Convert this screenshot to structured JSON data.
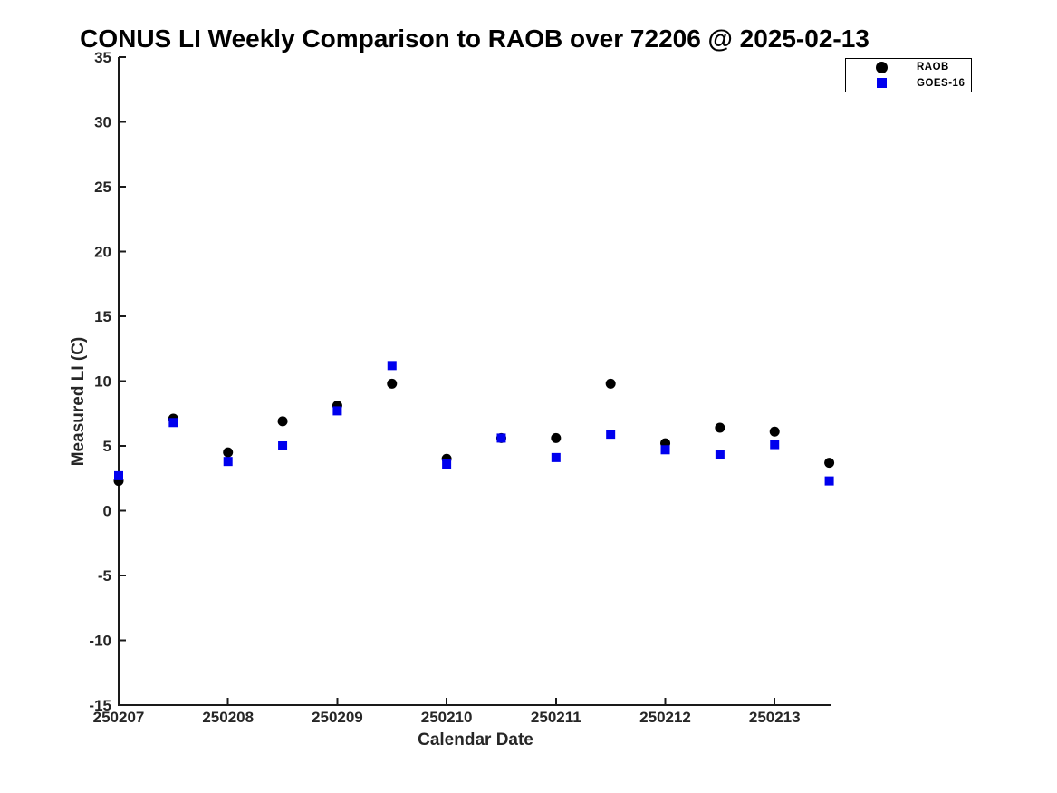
{
  "chart_data": {
    "type": "scatter",
    "title": "CONUS LI Weekly Comparison to RAOB over 72206 @ 2025-02-13",
    "xlabel": "Calendar Date",
    "ylabel": "Measured LI (C)",
    "xlim": [
      250207,
      250213.52
    ],
    "ylim": [
      -15,
      35
    ],
    "xticks": [
      250207,
      250208,
      250209,
      250210,
      250211,
      250212,
      250213
    ],
    "xtick_labels": [
      "250207",
      "250208",
      "250209",
      "250210",
      "250211",
      "250212",
      "250213"
    ],
    "yticks": [
      35,
      30,
      25,
      20,
      15,
      10,
      5,
      0,
      -5,
      -10,
      -15
    ],
    "grid": false,
    "legend_position": "top-right",
    "x": [
      250207,
      250207.5,
      250208,
      250208.5,
      250209,
      250209.5,
      250210,
      250210.5,
      250211,
      250211.5,
      250212,
      250212.5,
      250213,
      250213.5
    ],
    "series": [
      {
        "id": "raob",
        "name": "RAOB",
        "marker": "circle",
        "color": "#000000",
        "values": [
          2.3,
          7.1,
          4.5,
          6.9,
          8.1,
          9.8,
          4.0,
          5.6,
          5.6,
          9.8,
          5.2,
          6.4,
          6.1,
          3.7
        ]
      },
      {
        "id": "goes16",
        "name": "GOES-16",
        "marker": "square",
        "color": "#0000ee",
        "values": [
          2.7,
          6.8,
          3.8,
          5.0,
          7.7,
          11.2,
          3.6,
          5.6,
          4.1,
          5.9,
          4.7,
          4.3,
          5.1,
          2.3
        ]
      }
    ],
    "axis_color": "#1a1a1a",
    "tick_label_color": "#262626"
  }
}
